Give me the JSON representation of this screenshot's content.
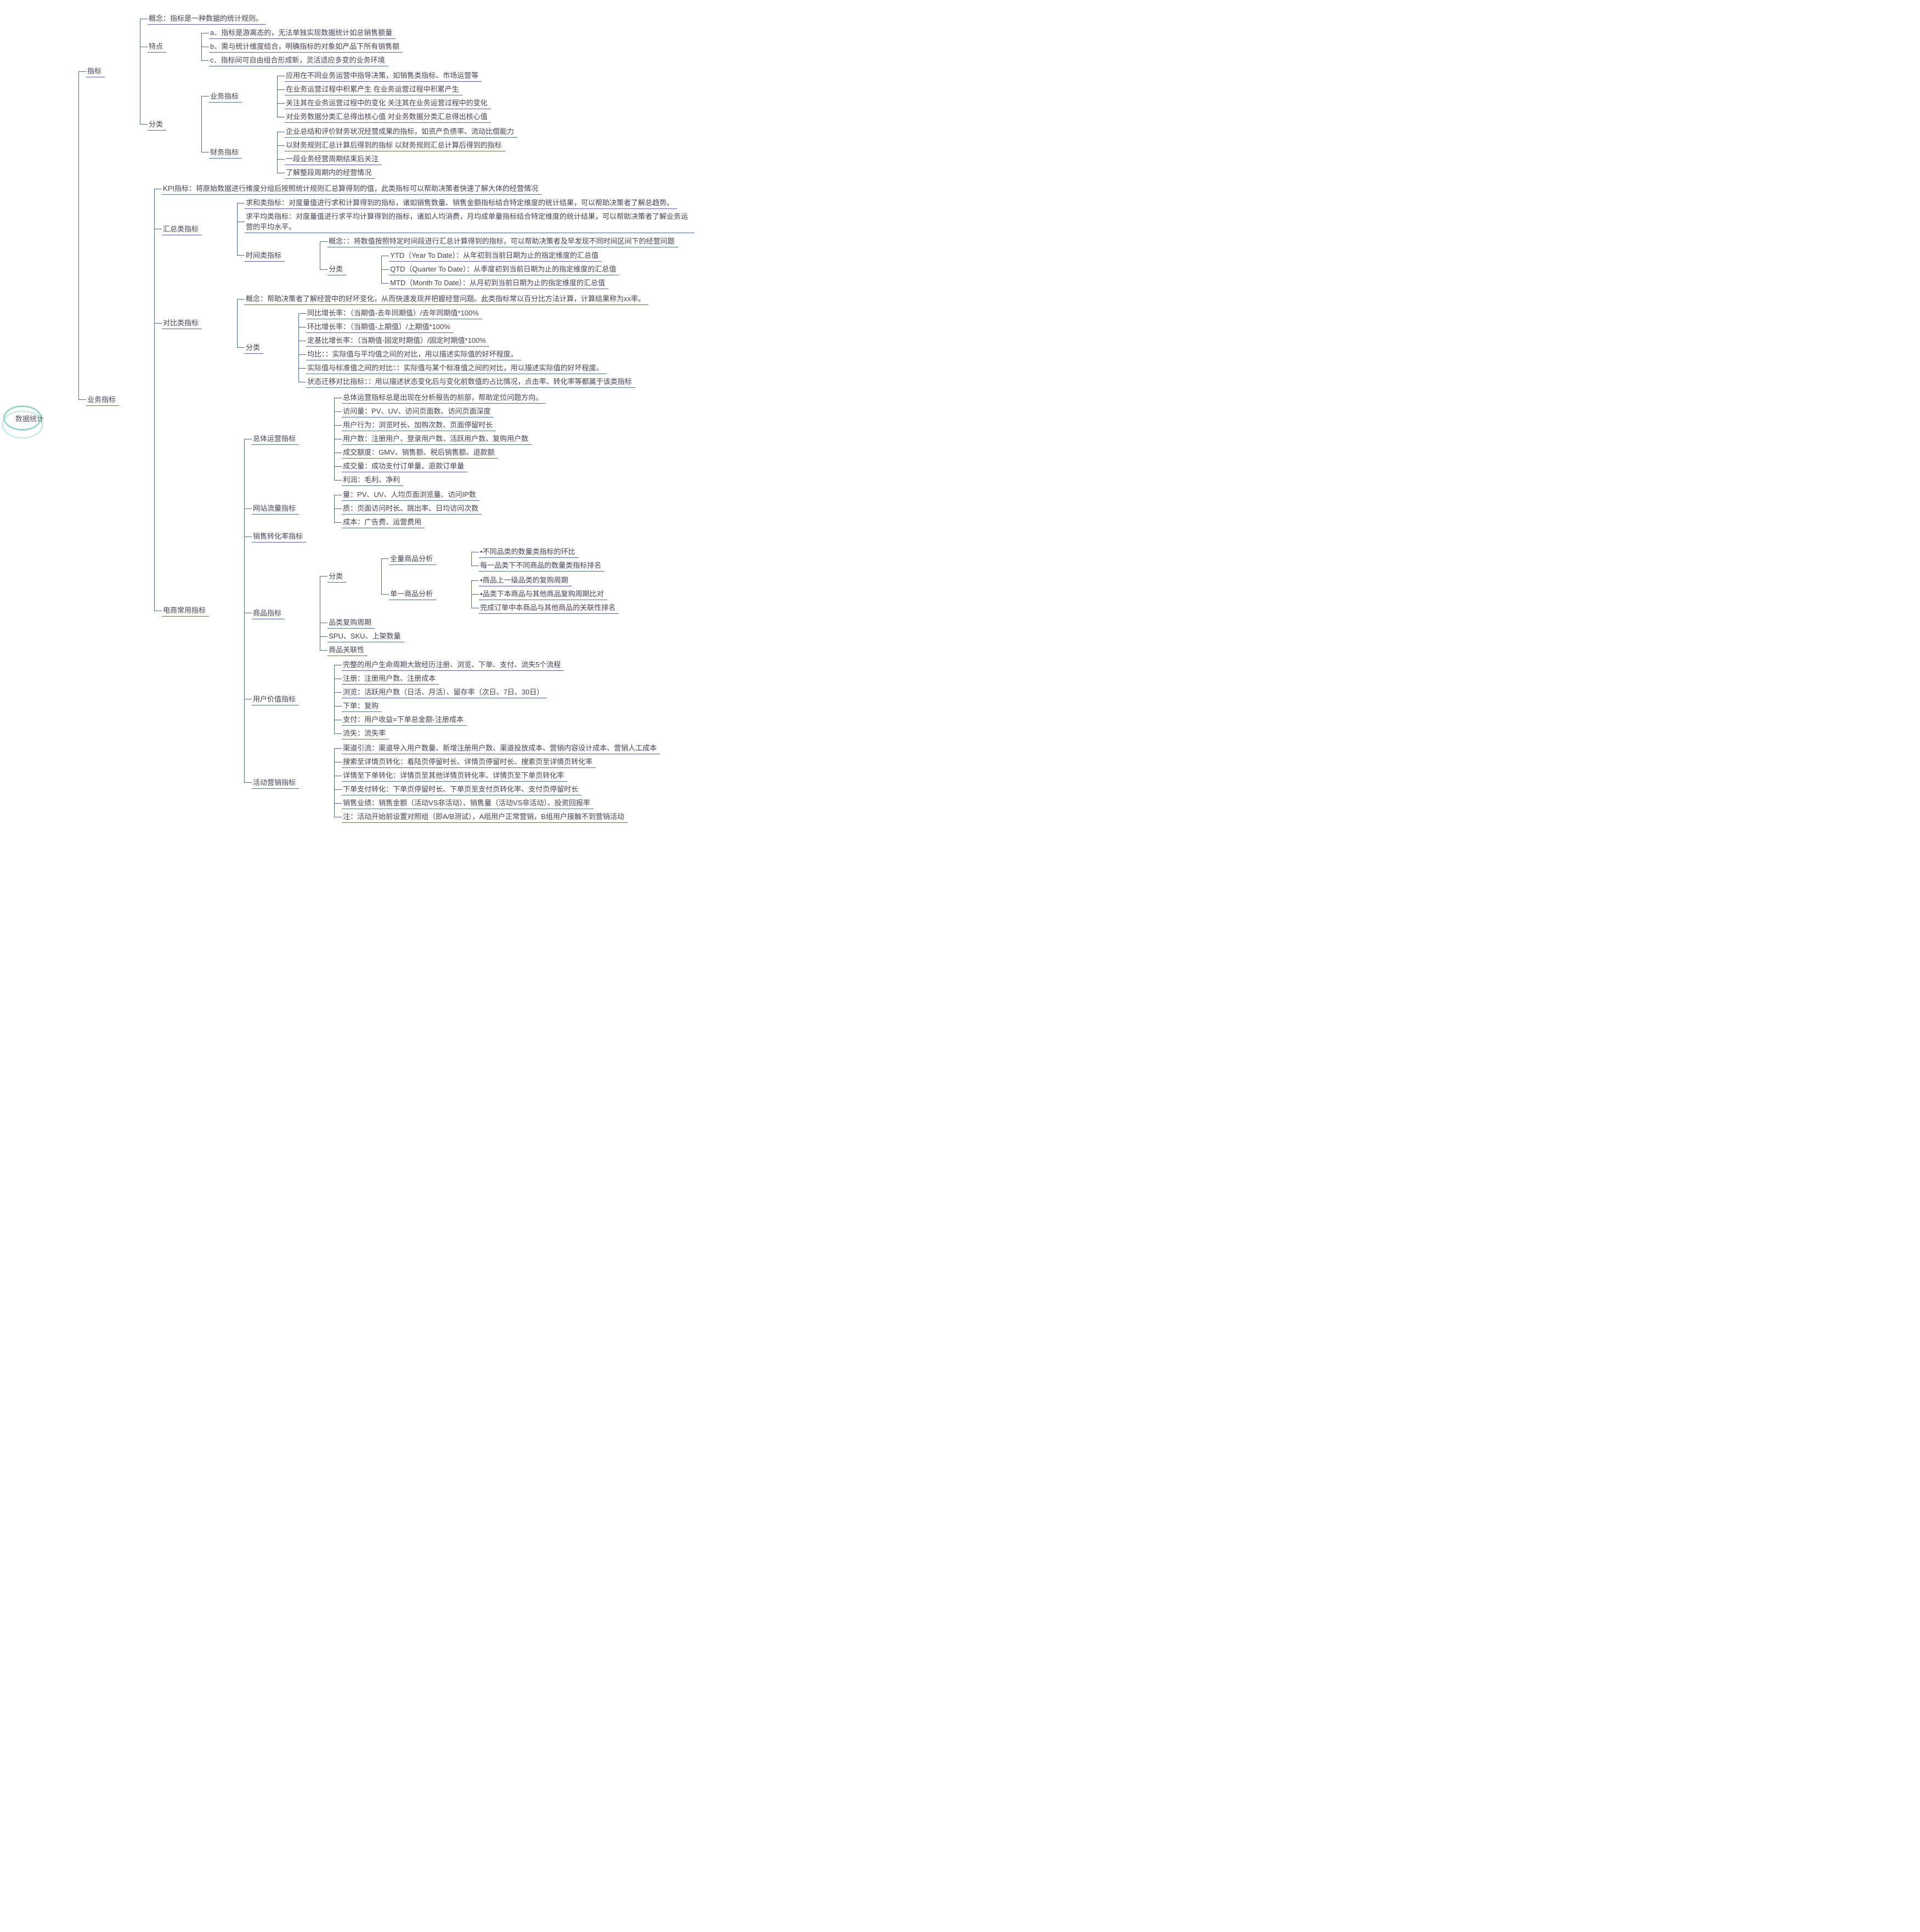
{
  "colors": {
    "connector": "#4a6a9a",
    "text": "#333344",
    "root_ring": "#8fd3c7",
    "background": "#ffffff"
  },
  "typography": {
    "base_fontsize_pt": 10,
    "font_family": "Microsoft YaHei / PingFang SC"
  },
  "layout": {
    "type": "tree",
    "orientation": "left-to-right",
    "root_decoration": "double-ellipse-ring"
  },
  "root": "数据统计",
  "n1": "指标",
  "n1_1": "概念：指标是一种数据的统计规则。",
  "n1_2": "特点",
  "n1_2a": "a．指标是游离态的，无法单独实现数据统计如总销售额量",
  "n1_2b": "b．需与统计维度结合，明确指标的对象如产品下所有销售额",
  "n1_2c": "c．指标间可自由组合形成新，灵活适应多变的业务环境",
  "n1_3": "分类",
  "n1_3_1": "业务指标",
  "n1_3_1a": "应用在不同业务运营中指导决策，如销售类指标、市场运营等",
  "n1_3_1b": "在业务运营过程中积累产生 在业务运营过程中积累产生",
  "n1_3_1c": "关注其在业务运营过程中的变化 关注其在业务运营过程中的变化",
  "n1_3_1d": "对业务数据分类汇总得出核心值 对业务数据分类汇总得出核心值",
  "n1_3_2": "财务指标",
  "n1_3_2a": "企业总结和评价财务状况经营成果的指标，如资产负债率、流动比偿能力",
  "n1_3_2b": "以财务规则汇总计算后得到的指标 以财务规则汇总计算后得到的指标",
  "n1_3_2c": "一段业务经营周期结束后关注",
  "n1_3_2d": "了解整段周期内的经营情况",
  "n2": "业务指标",
  "n2_1": "KPI指标：将原始数据进行维度分组后按照统计规则汇总算得到的值，此类指标可以帮助决策者快速了解大体的经营情况",
  "n2_2": "汇总类指标",
  "n2_2a": "求和类指标：对度量值进行求和计算得到的指标，诸如销售数量、销售金额指标结合特定维度的统计结果，可以帮助决策者了解总趋势。",
  "n2_2b": "求平均类指标：对度量值进行求平均计算得到的指标，诸如人均消费，月均成单量指标结合特定维度的统计结果，可以帮助决策者了解业务运营的平均水平。",
  "n2_2c": "时间类指标",
  "n2_2c1": "概念：：将数值按照特定时间段进行汇总计算得到的指标，可以帮助决策者及早发现不同时间区间下的经营问题",
  "n2_2c2": "分类",
  "n2_2c2a": "YTD（Year To Date）：从年初到当前日期为止的指定维度的汇总值",
  "n2_2c2b": "QTD（Quarter To Date）：从季度初到当前日期为止的指定维度的汇总值",
  "n2_2c2c": "MTD（Month To Date）：从月初到当前日期为止的指定维度的汇总值",
  "n2_3": "对比类指标",
  "n2_3a": "概念：帮助决策者了解经营中的好坏变化，从而快速发现并把握经营问题。此类指标常以百分比方法计算，计算结果称为xx率。",
  "n2_3b": "分类",
  "n2_3b1": "同比增长率：（当期值-去年同期值）/去年同期值*100%",
  "n2_3b2": "环比增长率：（当期值-上期值）/上期值*100%",
  "n2_3b3": "定基比增长率：（当期值-固定时期值）/固定时期值*100%",
  "n2_3b4": "均比：：实际值与平均值之间的对比，用以描述实际值的好坏程度。",
  "n2_3b5": "实际值与标准值之间的对比：：实际值与某个标准值之间的对比，用以描述实际值的好坏程度。",
  "n2_3b6": "状态迁移对比指标：：用以描述状态变化后与变化前数值的占比情况，点击率、转化率等都属于该类指标",
  "n2_4": "电商常用指标",
  "n2_4_1": "总体运营指标",
  "n2_4_1a": "总体运营指标总是出现在分析报告的前部，帮助定位问题方向。",
  "n2_4_1b": "访问量：PV、UV、访问页面数、访问页面深度",
  "n2_4_1c": "用户行为：浏览时长、加购次数、页面停留时长",
  "n2_4_1d": "用户数：注册用户、登录用户数、活跃用户数、复购用户数",
  "n2_4_1e": "成交额度：GMV、销售额、税后销售额、退款额",
  "n2_4_1f": "成交量：成功支付订单量、退款订单量",
  "n2_4_1g": "利润：毛利、净利",
  "n2_4_2": "网站流量指标",
  "n2_4_2a": "量：PV、UV、人均页面浏览量、访问IP数",
  "n2_4_2b": "质：页面访问时长、跳出率、日均访问次数",
  "n2_4_2c": "成本：广告费、运营费用",
  "n2_4_3": "销售转化率指标",
  "n2_4_4": "商品指标",
  "n2_4_4_1": "分类",
  "n2_4_4_1a": "全量商品分析",
  "n2_4_4_1a1": "•不同品类的数量类指标的环比",
  "n2_4_4_1a2": "每一品类下不同商品的数量类指标排名",
  "n2_4_4_1b": "单一商品分析",
  "n2_4_4_1b1": "•商品上一级品类的复购周期",
  "n2_4_4_1b2": "•品类下本商品与其他商品复购周期比对",
  "n2_4_4_1b3": "完成订单中本商品与其他商品的关联性排名",
  "n2_4_4_2": "品类复购周期",
  "n2_4_4_3": "SPU、SKU、上架数量",
  "n2_4_4_4": "商品关联性",
  "n2_4_5": "用户价值指标",
  "n2_4_5a": "完整的用户生命周期大致经历注册、浏览、下单、支付、流失5个流程",
  "n2_4_5b": "注册：注册用户数、注册成本",
  "n2_4_5c": "浏览：活跃用户数（日活、月活）、留存率（次日、7日、30日）",
  "n2_4_5d": "下单：复购",
  "n2_4_5e": "支付：用户收益=下单总金额-注册成本",
  "n2_4_5f": "流失：流失率",
  "n2_4_6": "活动营销指标",
  "n2_4_6a": "渠道引流：渠道导入用户数量、新增注册用户数、渠道投放成本、营销内容设计成本、营销人工成本",
  "n2_4_6b": "搜索至详情页转化：着陆页停留时长、详情页停留时长、搜索页至详情页转化率",
  "n2_4_6c": "详情至下单转化：详情页至其他详情页转化率、详情页至下单页转化率",
  "n2_4_6d": "下单支付转化：下单页停留时长、下单页至支付页转化率、支付页停留时长",
  "n2_4_6e": "销售业绩：销售金额（活动VS非活动）、销售量（活动VS非活动）、投资回报率",
  "n2_4_6f": "注：活动开始前设置对照组（即A/B测试），A组用户正常营销，B组用户接触不到营销活动"
}
